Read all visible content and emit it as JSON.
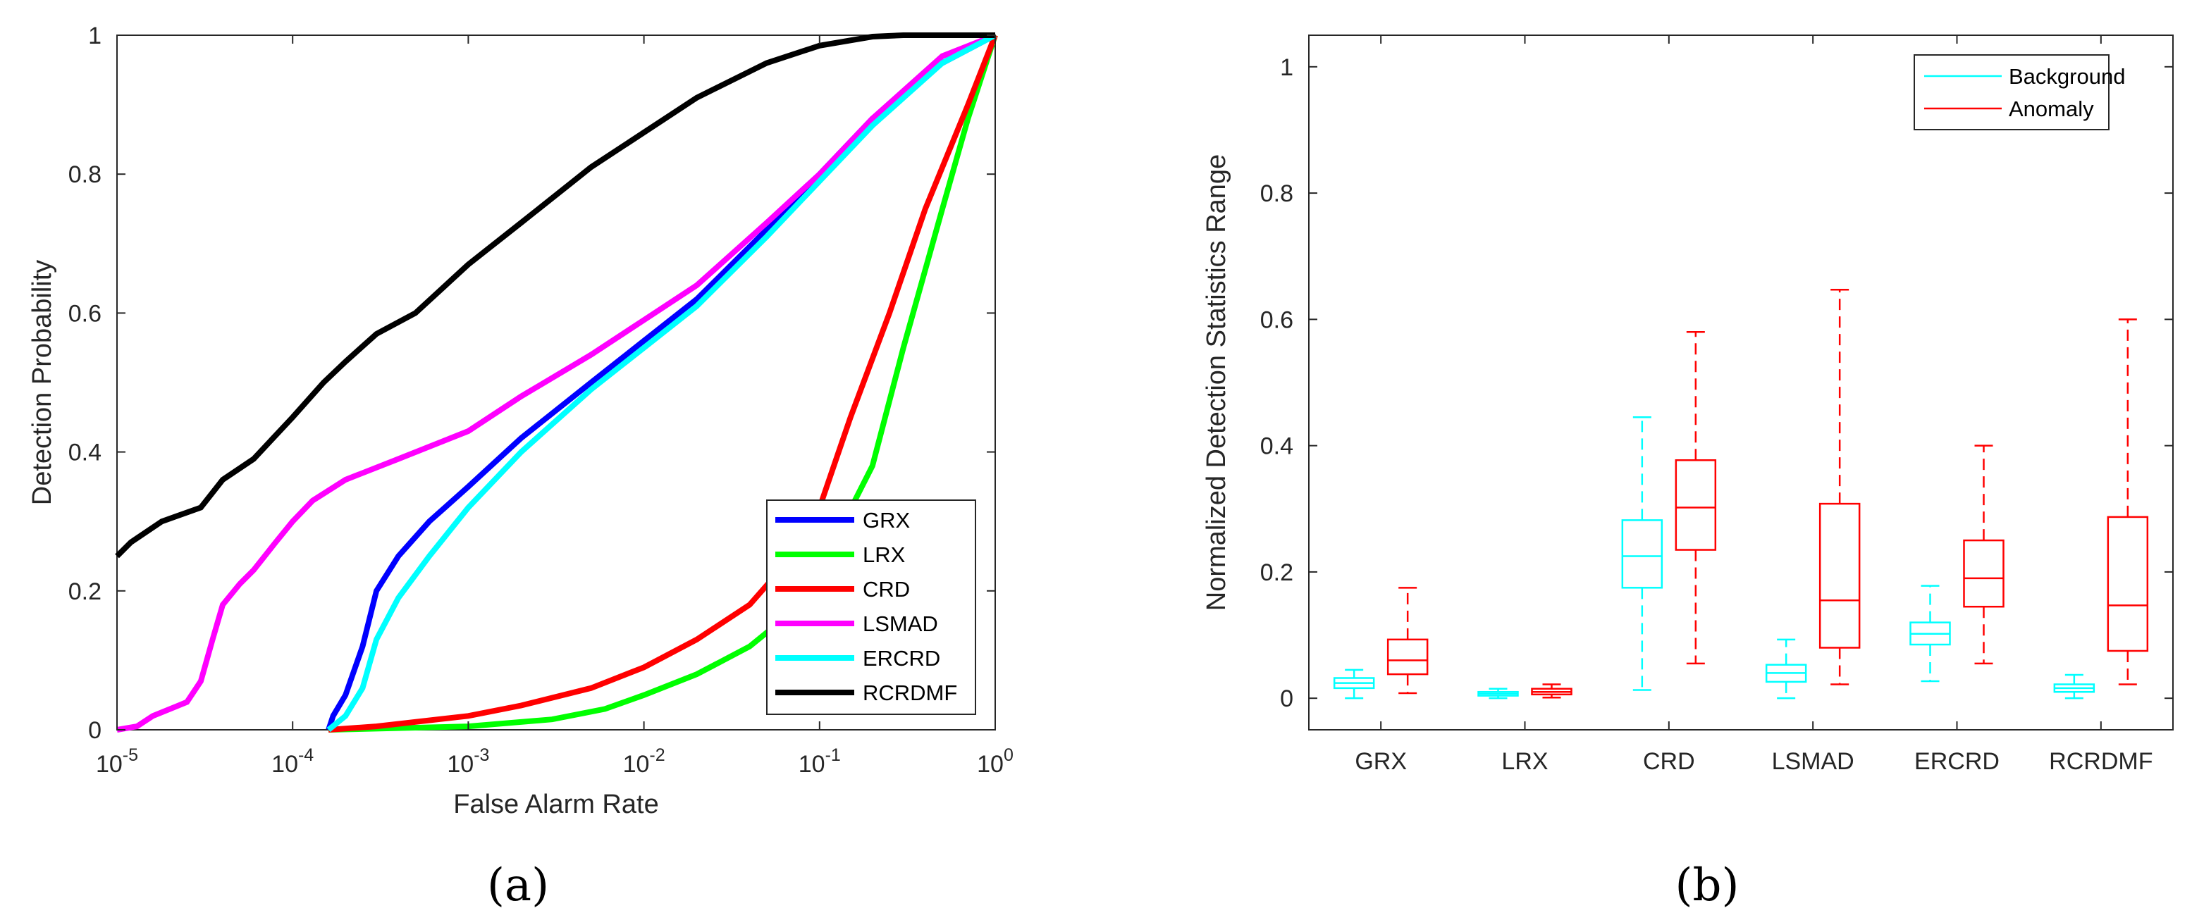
{
  "panel_labels": [
    "(a)",
    "(b)"
  ],
  "chart_data": [
    {
      "type": "line",
      "xlabel": "False Alarm Rate",
      "ylabel": "Detection Probability",
      "xscale": "log",
      "xlim": [
        1e-05,
        1
      ],
      "ylim": [
        0,
        1
      ],
      "xticks": [
        {
          "base": "10",
          "exp": "-5"
        },
        {
          "base": "10",
          "exp": "-4"
        },
        {
          "base": "10",
          "exp": "-3"
        },
        {
          "base": "10",
          "exp": "-2"
        },
        {
          "base": "10",
          "exp": "-1"
        },
        {
          "base": "10",
          "exp": "0"
        }
      ],
      "yticks": [
        "0",
        "0.2",
        "0.4",
        "0.6",
        "0.8",
        "1"
      ],
      "legend_position": "lower-right",
      "series": [
        {
          "name": "GRX",
          "color": "#0000ff",
          "points": [
            [
              0.00016,
              0
            ],
            [
              0.00017,
              0.02
            ],
            [
              0.0002,
              0.05
            ],
            [
              0.00025,
              0.12
            ],
            [
              0.0003,
              0.2
            ],
            [
              0.0004,
              0.25
            ],
            [
              0.0006,
              0.3
            ],
            [
              0.001,
              0.35
            ],
            [
              0.002,
              0.42
            ],
            [
              0.005,
              0.5
            ],
            [
              0.01,
              0.56
            ],
            [
              0.02,
              0.62
            ],
            [
              0.05,
              0.72
            ],
            [
              0.1,
              0.8
            ],
            [
              0.2,
              0.88
            ],
            [
              0.5,
              0.96
            ],
            [
              1,
              1
            ]
          ]
        },
        {
          "name": "LRX",
          "color": "#00ff00",
          "points": [
            [
              0.00016,
              0
            ],
            [
              0.0005,
              0.003
            ],
            [
              0.001,
              0.005
            ],
            [
              0.003,
              0.015
            ],
            [
              0.006,
              0.03
            ],
            [
              0.01,
              0.05
            ],
            [
              0.02,
              0.08
            ],
            [
              0.04,
              0.12
            ],
            [
              0.07,
              0.17
            ],
            [
              0.1,
              0.23
            ],
            [
              0.2,
              0.38
            ],
            [
              0.3,
              0.55
            ],
            [
              0.5,
              0.75
            ],
            [
              0.7,
              0.88
            ],
            [
              1,
              1
            ]
          ]
        },
        {
          "name": "CRD",
          "color": "#ff0000",
          "points": [
            [
              0.00016,
              0
            ],
            [
              0.0003,
              0.005
            ],
            [
              0.001,
              0.02
            ],
            [
              0.002,
              0.035
            ],
            [
              0.005,
              0.06
            ],
            [
              0.01,
              0.09
            ],
            [
              0.02,
              0.13
            ],
            [
              0.04,
              0.18
            ],
            [
              0.07,
              0.25
            ],
            [
              0.1,
              0.32
            ],
            [
              0.15,
              0.45
            ],
            [
              0.25,
              0.6
            ],
            [
              0.4,
              0.75
            ],
            [
              0.7,
              0.9
            ],
            [
              1,
              1
            ]
          ]
        },
        {
          "name": "LSMAD",
          "color": "#ff00ff",
          "points": [
            [
              1e-05,
              0
            ],
            [
              1.3e-05,
              0.005
            ],
            [
              1.6e-05,
              0.02
            ],
            [
              2.5e-05,
              0.04
            ],
            [
              3e-05,
              0.07
            ],
            [
              3.5e-05,
              0.13
            ],
            [
              4e-05,
              0.18
            ],
            [
              5e-05,
              0.21
            ],
            [
              6e-05,
              0.23
            ],
            [
              8e-05,
              0.27
            ],
            [
              0.0001,
              0.3
            ],
            [
              0.00013,
              0.33
            ],
            [
              0.0002,
              0.36
            ],
            [
              0.0004,
              0.39
            ],
            [
              0.001,
              0.43
            ],
            [
              0.002,
              0.48
            ],
            [
              0.005,
              0.54
            ],
            [
              0.01,
              0.59
            ],
            [
              0.02,
              0.64
            ],
            [
              0.05,
              0.73
            ],
            [
              0.1,
              0.8
            ],
            [
              0.2,
              0.88
            ],
            [
              0.5,
              0.97
            ],
            [
              1,
              1
            ]
          ]
        },
        {
          "name": "ERCRD",
          "color": "#00ffff",
          "points": [
            [
              0.00016,
              0
            ],
            [
              0.0002,
              0.02
            ],
            [
              0.00025,
              0.06
            ],
            [
              0.0003,
              0.13
            ],
            [
              0.0004,
              0.19
            ],
            [
              0.0006,
              0.25
            ],
            [
              0.001,
              0.32
            ],
            [
              0.002,
              0.4
            ],
            [
              0.005,
              0.49
            ],
            [
              0.01,
              0.55
            ],
            [
              0.02,
              0.61
            ],
            [
              0.05,
              0.71
            ],
            [
              0.1,
              0.79
            ],
            [
              0.2,
              0.87
            ],
            [
              0.5,
              0.96
            ],
            [
              1,
              1
            ]
          ]
        },
        {
          "name": "RCRDMF",
          "color": "#000000",
          "points": [
            [
              1e-05,
              0.25
            ],
            [
              1.2e-05,
              0.27
            ],
            [
              1.8e-05,
              0.3
            ],
            [
              3e-05,
              0.32
            ],
            [
              4e-05,
              0.36
            ],
            [
              6e-05,
              0.39
            ],
            [
              0.0001,
              0.45
            ],
            [
              0.00015,
              0.5
            ],
            [
              0.0002,
              0.53
            ],
            [
              0.0003,
              0.57
            ],
            [
              0.0005,
              0.6
            ],
            [
              0.001,
              0.67
            ],
            [
              0.002,
              0.73
            ],
            [
              0.005,
              0.81
            ],
            [
              0.01,
              0.86
            ],
            [
              0.02,
              0.91
            ],
            [
              0.05,
              0.96
            ],
            [
              0.1,
              0.985
            ],
            [
              0.2,
              0.998
            ],
            [
              0.3,
              1
            ],
            [
              1,
              1
            ]
          ]
        }
      ]
    },
    {
      "type": "box",
      "xlabel": "",
      "ylabel": "Normalized Detection Statistics Range",
      "ylim": [
        -0.05,
        1.05
      ],
      "yticks": [
        "0",
        "0.2",
        "0.4",
        "0.6",
        "0.8",
        "1"
      ],
      "categories": [
        "GRX",
        "LRX",
        "CRD",
        "LSMAD",
        "ERCRD",
        "RCRDMF"
      ],
      "legend_position": "top-right",
      "series": [
        {
          "name": "Background",
          "color": "#00ffff",
          "boxes": [
            {
              "min": 0,
              "q1": 0.016,
              "median": 0.024,
              "q3": 0.032,
              "max": 0.045
            },
            {
              "min": 0,
              "q1": 0.004,
              "median": 0.007,
              "q3": 0.01,
              "max": 0.015
            },
            {
              "min": 0.013,
              "q1": 0.175,
              "median": 0.225,
              "q3": 0.282,
              "max": 0.445
            },
            {
              "min": 0,
              "q1": 0.026,
              "median": 0.04,
              "q3": 0.053,
              "max": 0.093
            },
            {
              "min": 0.027,
              "q1": 0.085,
              "median": 0.102,
              "q3": 0.12,
              "max": 0.178
            },
            {
              "min": 0,
              "q1": 0.01,
              "median": 0.016,
              "q3": 0.022,
              "max": 0.037
            }
          ]
        },
        {
          "name": "Anomaly",
          "color": "#ff0000",
          "boxes": [
            {
              "min": 0.008,
              "q1": 0.038,
              "median": 0.06,
              "q3": 0.093,
              "max": 0.175
            },
            {
              "min": 0.001,
              "q1": 0.006,
              "median": 0.01,
              "q3": 0.015,
              "max": 0.022
            },
            {
              "min": 0.055,
              "q1": 0.235,
              "median": 0.302,
              "q3": 0.377,
              "max": 0.58
            },
            {
              "min": 0.022,
              "q1": 0.08,
              "median": 0.155,
              "q3": 0.308,
              "max": 0.647
            },
            {
              "min": 0.055,
              "q1": 0.145,
              "median": 0.19,
              "q3": 0.25,
              "max": 0.4
            },
            {
              "min": 0.022,
              "q1": 0.075,
              "median": 0.147,
              "q3": 0.287,
              "max": 0.6
            }
          ]
        }
      ]
    }
  ]
}
